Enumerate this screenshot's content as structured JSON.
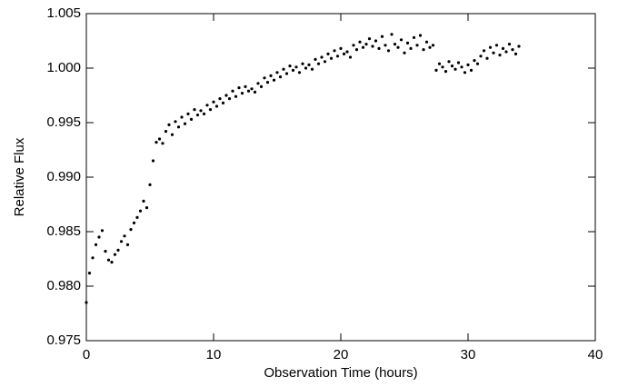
{
  "chart_data": {
    "type": "scatter",
    "xlabel": "Observation Time (hours)",
    "ylabel": "Relative Flux",
    "color": "#000000",
    "xlim": [
      0,
      40
    ],
    "xticks": [
      0,
      10,
      20,
      30,
      40
    ],
    "ylim": [
      0.975,
      1.005
    ],
    "yticks": [
      0.975,
      {
        "value": 0.98,
        "label": "0.980"
      },
      0.985,
      {
        "value": 0.99,
        "label": "0.990"
      },
      0.995,
      {
        "value": 1,
        "label": "1.000"
      },
      1.005
    ],
    "x": [
      0,
      0.25,
      0.5,
      0.75,
      1,
      1.25,
      1.5,
      1.75,
      2,
      2.25,
      2.5,
      2.75,
      3,
      3.25,
      3.5,
      3.75,
      4,
      4.25,
      4.5,
      4.75,
      5,
      5.25,
      5.5,
      5.75,
      6,
      6.25,
      6.5,
      6.75,
      7,
      7.25,
      7.5,
      7.75,
      8,
      8.25,
      8.5,
      8.75,
      9,
      9.25,
      9.5,
      9.75,
      10,
      10.25,
      10.5,
      10.75,
      11,
      11.25,
      11.5,
      11.75,
      12,
      12.25,
      12.5,
      12.75,
      13,
      13.25,
      13.5,
      13.75,
      14,
      14.25,
      14.5,
      14.75,
      15,
      15.25,
      15.5,
      15.75,
      16,
      16.25,
      16.5,
      16.75,
      17,
      17.25,
      17.5,
      17.75,
      18,
      18.25,
      18.5,
      18.75,
      19,
      19.25,
      19.5,
      19.75,
      20,
      20.25,
      20.5,
      20.75,
      21,
      21.25,
      21.5,
      21.75,
      22,
      22.25,
      22.5,
      22.75,
      23,
      23.25,
      23.5,
      23.75,
      24,
      24.25,
      24.5,
      24.75,
      25,
      25.25,
      25.5,
      25.75,
      26,
      26.25,
      26.5,
      26.75,
      27,
      27.25,
      27.5,
      27.75,
      28,
      28.25,
      28.5,
      28.75,
      29,
      29.25,
      29.5,
      29.75,
      30,
      30.25,
      30.5,
      30.75,
      31,
      31.25,
      31.5,
      31.75,
      32,
      32.25,
      32.5,
      32.75,
      33,
      33.25,
      33.5,
      33.75,
      34
    ],
    "values": [
      0.9785,
      0.9812,
      0.9826,
      0.9838,
      0.9845,
      0.9851,
      0.9832,
      0.9824,
      0.9822,
      0.9829,
      0.9833,
      0.9841,
      0.9846,
      0.9838,
      0.9852,
      0.9858,
      0.9863,
      0.9869,
      0.9878,
      0.9872,
      0.9893,
      0.9915,
      0.9932,
      0.9935,
      0.9931,
      0.9942,
      0.9948,
      0.9939,
      0.9951,
      0.9946,
      0.9955,
      0.9949,
      0.9958,
      0.9953,
      0.9962,
      0.9957,
      0.9961,
      0.9958,
      0.9966,
      0.9962,
      0.9969,
      0.9965,
      0.9972,
      0.9968,
      0.9975,
      0.9972,
      0.9979,
      0.9974,
      0.9982,
      0.9977,
      0.9983,
      0.9979,
      0.9981,
      0.9978,
      0.9986,
      0.9983,
      0.9991,
      0.9987,
      0.9993,
      0.9989,
      0.9996,
      0.9992,
      0.9999,
      0.9995,
      1.0002,
      0.9998,
      1.0001,
      0.9996,
      1.0004,
      1.0,
      1.0003,
      0.9999,
      1.0008,
      1.0004,
      1.001,
      1.0006,
      1.0013,
      1.0009,
      1.0016,
      1.0011,
      1.0018,
      1.0013,
      1.0015,
      1.001,
      1.0021,
      1.0017,
      1.0024,
      1.0019,
      1.0022,
      1.0027,
      1.002,
      1.0025,
      1.0018,
      1.0029,
      1.0021,
      1.0016,
      1.0031,
      1.0022,
      1.0019,
      1.0026,
      1.0014,
      1.0023,
      1.0018,
      1.0028,
      1.0021,
      1.003,
      1.0017,
      1.0024,
      1.0019,
      1.0021,
      0.9998,
      1.0004,
      1.0001,
      0.9997,
      1.0006,
      1.0002,
      0.9999,
      1.0005,
      1.0001,
      0.9996,
      1.0003,
      0.9998,
      1.0007,
      1.0004,
      1.0011,
      1.0016,
      1.0009,
      1.0019,
      1.0014,
      1.0021,
      1.0012,
      1.0018,
      1.0015,
      1.0022,
      1.0017,
      1.0013,
      1.002
    ]
  }
}
